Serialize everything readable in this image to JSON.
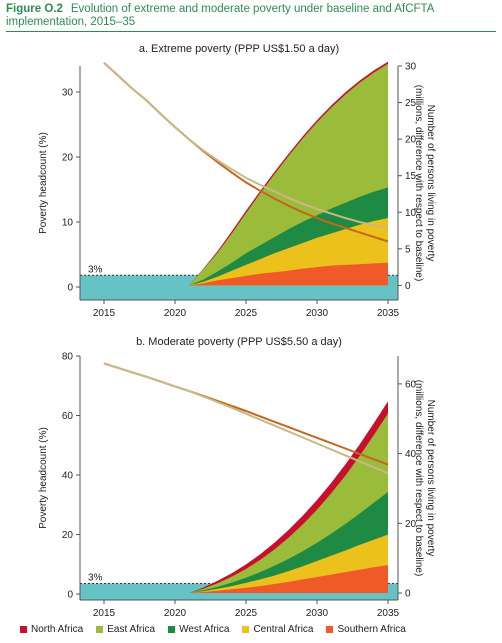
{
  "figure": {
    "number": "Figure O.2",
    "title": "Evolution of extreme and moderate poverty under baseline and AfCFTA implementation, 2015–35"
  },
  "legend": [
    {
      "label": "North Africa",
      "color": "#c8102e"
    },
    {
      "label": "East Africa",
      "color": "#9bbb3a"
    },
    {
      "label": "West Africa",
      "color": "#1f8a43"
    },
    {
      "label": "Central Africa",
      "color": "#ecc11c"
    },
    {
      "label": "Southern Africa",
      "color": "#f05a28"
    }
  ],
  "colors": {
    "baseline_line": "#c9b887",
    "afcfta_line": "#c4661f",
    "threshold_band": "#66c3c5",
    "axis": "#555555",
    "grid": "#cccccc"
  },
  "chart_data": [
    {
      "type": "area",
      "title": "a. Extreme poverty (PPP US$1.50 a day)",
      "x": [
        2015,
        2016,
        2017,
        2018,
        2019,
        2020,
        2021,
        2022,
        2023,
        2024,
        2025,
        2026,
        2027,
        2028,
        2029,
        2030,
        2031,
        2032,
        2033,
        2034,
        2035
      ],
      "xticks": [
        "2015",
        "2020",
        "2025",
        "2030",
        "2035"
      ],
      "ylabel_left": "Poverty headcount (%)",
      "ylim_left": [
        -2,
        34
      ],
      "yticks_left": [
        "0",
        "10",
        "20",
        "30"
      ],
      "ylabel_right": "Number of persons living in poverty (millions, difference with respect to baseline)",
      "ylim_right": [
        -2,
        30
      ],
      "yticks_right": [
        "0",
        "5",
        "10",
        "15",
        "20",
        "25",
        "30"
      ],
      "threshold_label": "3%",
      "threshold_value": 3,
      "series": [
        {
          "name": "Southern Africa",
          "values": [
            0,
            0,
            0,
            0,
            0,
            0,
            0,
            0.3,
            0.7,
            1.0,
            1.3,
            1.6,
            1.8,
            2.0,
            2.3,
            2.5,
            2.7,
            2.8,
            2.9,
            3.0,
            3.1
          ]
        },
        {
          "name": "Central Africa",
          "values": [
            0,
            0,
            0,
            0,
            0,
            0,
            0,
            0.5,
            1.2,
            2.0,
            2.8,
            3.6,
            4.4,
            5.1,
            5.8,
            6.5,
            7.1,
            7.7,
            8.3,
            8.8,
            9.2
          ]
        },
        {
          "name": "West Africa",
          "values": [
            0,
            0,
            0,
            0,
            0,
            0,
            0,
            0.8,
            1.9,
            3.1,
            4.4,
            5.5,
            6.6,
            7.7,
            8.7,
            9.6,
            10.5,
            11.3,
            12.1,
            12.8,
            13.4
          ]
        },
        {
          "name": "East Africa",
          "values": [
            0,
            0,
            0,
            0,
            0,
            0,
            0,
            2.2,
            4.5,
            7.1,
            9.9,
            12.6,
            15.2,
            17.7,
            20.1,
            22.3,
            24.3,
            26.1,
            27.7,
            29.1,
            30.3
          ]
        },
        {
          "name": "North Africa",
          "values": [
            0,
            0,
            0,
            0,
            0,
            0,
            0,
            2.3,
            4.7,
            7.4,
            10.2,
            12.9,
            15.5,
            18.0,
            20.4,
            22.6,
            24.6,
            26.4,
            28.0,
            29.4,
            30.6
          ]
        }
      ],
      "lines": [
        {
          "values": [
            34.5,
            32.5,
            30.5,
            28.7,
            26.6,
            24.6,
            22.7,
            20.9,
            19.2,
            17.6,
            16.1,
            14.8,
            13.6,
            12.5,
            11.5,
            10.6,
            9.8,
            9.1,
            8.4,
            7.7,
            7.0
          ]
        },
        {
          "values": [
            34.5,
            32.5,
            30.5,
            28.7,
            26.6,
            24.6,
            22.7,
            21.0,
            19.5,
            18.1,
            16.8,
            15.7,
            14.7,
            13.7,
            12.8,
            12.0,
            11.3,
            10.6,
            10.0,
            9.5,
            9.0
          ]
        }
      ]
    },
    {
      "type": "area",
      "title": "b. Moderate poverty (PPP US$5.50 a day)",
      "x": [
        2015,
        2016,
        2017,
        2018,
        2019,
        2020,
        2021,
        2022,
        2023,
        2024,
        2025,
        2026,
        2027,
        2028,
        2029,
        2030,
        2031,
        2032,
        2033,
        2034,
        2035
      ],
      "xticks": [
        "2015",
        "2020",
        "2025",
        "2030",
        "2035"
      ],
      "ylabel_left": "Poverty headcount (%)",
      "ylim_left": [
        -2,
        80
      ],
      "yticks_left": [
        "0",
        "20",
        "40",
        "60",
        "80"
      ],
      "ylabel_right": "Number of persons living in poverty (millions, difference with respect to baseline)",
      "ylim_right": [
        -2,
        68
      ],
      "yticks_right": [
        "0",
        "20",
        "40",
        "60"
      ],
      "threshold_label": "3%",
      "threshold_value": 3,
      "series": [
        {
          "name": "Southern Africa",
          "values": [
            0,
            0,
            0,
            0,
            0,
            0,
            0,
            0.3,
            0.7,
            1.1,
            1.5,
            2.0,
            2.6,
            3.2,
            3.9,
            4.6,
            5.3,
            6.0,
            6.7,
            7.4,
            8.0
          ]
        },
        {
          "name": "Central Africa",
          "values": [
            0,
            0,
            0,
            0,
            0,
            0,
            0,
            0.5,
            1.2,
            2.0,
            2.9,
            3.9,
            5.0,
            6.3,
            7.7,
            9.2,
            10.7,
            12.2,
            13.8,
            15.3,
            16.8
          ]
        },
        {
          "name": "West Africa",
          "values": [
            0,
            0,
            0,
            0,
            0,
            0,
            0,
            0.8,
            1.8,
            3.0,
            4.4,
            6.0,
            7.8,
            9.8,
            12.0,
            14.4,
            17.0,
            19.8,
            22.8,
            25.9,
            29.0
          ]
        },
        {
          "name": "East Africa",
          "values": [
            0,
            0,
            0,
            0,
            0,
            0,
            0,
            1.2,
            2.8,
            4.7,
            6.9,
            9.5,
            12.5,
            15.9,
            19.7,
            23.9,
            28.6,
            33.7,
            39.3,
            45.3,
            51.5
          ]
        },
        {
          "name": "North Africa",
          "values": [
            0,
            0,
            0,
            0,
            0,
            0,
            0,
            1.6,
            3.5,
            5.7,
            8.2,
            11.1,
            14.4,
            18.1,
            22.2,
            26.7,
            31.6,
            36.9,
            42.6,
            48.7,
            55.0
          ]
        }
      ],
      "lines": [
        {
          "values": [
            77.5,
            76.0,
            74.5,
            73.0,
            71.4,
            69.8,
            68.2,
            66.6,
            64.9,
            63.2,
            61.5,
            59.7,
            57.9,
            56.1,
            54.3,
            52.5,
            50.7,
            48.9,
            47.1,
            45.3,
            43.5
          ]
        },
        {
          "values": [
            77.5,
            76.0,
            74.5,
            73.0,
            71.4,
            69.8,
            68.2,
            66.4,
            64.5,
            62.6,
            60.6,
            58.6,
            56.6,
            54.6,
            52.6,
            50.6,
            48.6,
            46.6,
            44.6,
            42.6,
            40.6
          ]
        }
      ]
    }
  ]
}
